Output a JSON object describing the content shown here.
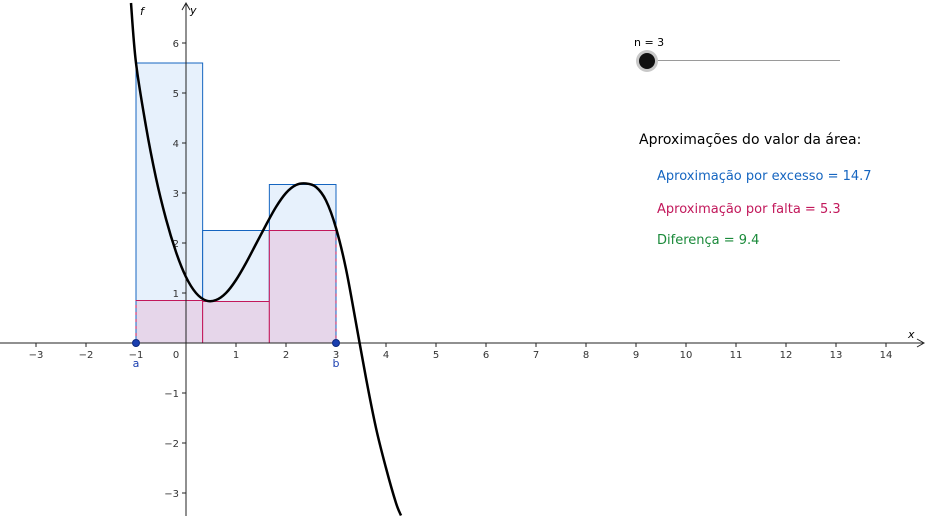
{
  "colors": {
    "upper": "#1565c0",
    "upper_fill": "#e3eefc",
    "lower": "#c2185b",
    "lower_fill": "#e6d6ea",
    "diff": "#1a8a3a",
    "curve": "#000000",
    "points": "#1a3fb0"
  },
  "slider": {
    "label": "n = 3",
    "value": 3
  },
  "approximations": {
    "title": "Aproximações do valor da área:",
    "upper": "Aproximação por excesso = 14.7",
    "lower": "Aproximação por falta = 5.3",
    "difference": "Diferença = 9.4"
  },
  "chart_data": {
    "type": "line",
    "function_label": "f",
    "xlabel": "x",
    "ylabel": "y",
    "xlim": [
      -3.6,
      14.8
    ],
    "ylim": [
      -3.4,
      6.8
    ],
    "x_ticks": [
      -3,
      -2,
      -1,
      0,
      1,
      2,
      3,
      4,
      5,
      6,
      7,
      8,
      9,
      10,
      11,
      12,
      13,
      14
    ],
    "x_tick_labels": [
      "−3",
      "−2",
      "−1",
      "0",
      "1",
      "2",
      "3",
      "4",
      "5",
      "6",
      "7",
      "8",
      "9",
      "10",
      "11",
      "12",
      "13",
      "14"
    ],
    "y_ticks": [
      -3,
      -2,
      -1,
      1,
      2,
      3,
      4,
      5,
      6
    ],
    "y_tick_labels": [
      "−3",
      "−2",
      "−1",
      "1",
      "2",
      "3",
      "4",
      "5",
      "6"
    ],
    "grid": false,
    "curve_points": {
      "x": [
        -1.1,
        -1,
        -0.8,
        -0.6,
        -0.4,
        -0.2,
        0,
        0.2,
        0.4,
        0.6,
        0.8,
        1.0,
        1.2,
        1.4,
        1.6,
        1.8,
        2.0,
        2.2,
        2.4,
        2.6,
        2.8,
        3.0,
        3.2,
        3.4,
        3.6,
        3.8,
        4.0,
        4.2,
        4.3
      ],
      "y": [
        6.8,
        5.6,
        4.33,
        3.3,
        2.48,
        1.82,
        1.32,
        1.0,
        0.85,
        0.86,
        1.0,
        1.26,
        1.6,
        1.98,
        2.36,
        2.72,
        3.0,
        3.16,
        3.19,
        3.12,
        2.85,
        2.3,
        1.48,
        0.4,
        -0.7,
        -1.7,
        -2.5,
        -3.2,
        -3.45
      ]
    },
    "interval": {
      "a": -1,
      "b": 3,
      "a_label": "a",
      "b_label": "b"
    },
    "upper_rectangles": [
      {
        "x0": -1,
        "x1": 0.333,
        "height": 5.6
      },
      {
        "x0": 0.333,
        "x1": 1.667,
        "height": 2.25
      },
      {
        "x0": 1.667,
        "x1": 3,
        "height": 3.17
      }
    ],
    "lower_rectangles": [
      {
        "x0": -1,
        "x1": 0.333,
        "height": 0.85
      },
      {
        "x0": 0.333,
        "x1": 1.667,
        "height": 0.83
      },
      {
        "x0": 1.667,
        "x1": 3,
        "height": 2.25
      }
    ]
  }
}
